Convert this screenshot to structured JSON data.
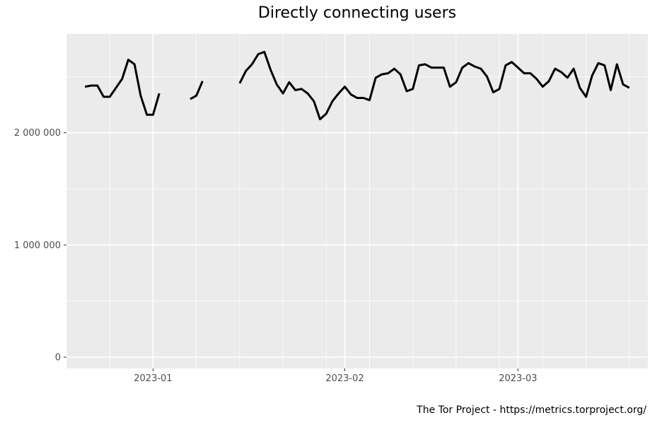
{
  "chart_data": {
    "type": "line",
    "title": "Directly connecting users",
    "xlabel": "",
    "ylabel": "",
    "caption": "The Tor Project - https://metrics.torproject.org/",
    "xlim": [
      "2022-12-18",
      "2023-03-22"
    ],
    "ylim": [
      -100000,
      2880000
    ],
    "x_ticks": [
      {
        "value": "2023-01-01",
        "label": "2023-01"
      },
      {
        "value": "2023-02-01",
        "label": "2023-02"
      },
      {
        "value": "2023-03-01",
        "label": "2023-03"
      }
    ],
    "y_ticks": [
      {
        "value": 0,
        "label": "0"
      },
      {
        "value": 1000000,
        "label": "1 000 000"
      },
      {
        "value": 2000000,
        "label": "2 000 000"
      }
    ],
    "grid": true,
    "legend": "none",
    "colors": {
      "line": "#000000",
      "panel": "#ebebeb",
      "grid": "#ffffff"
    },
    "series": [
      {
        "segments": [
          [
            [
              "2022-12-21",
              2410000
            ],
            [
              "2022-12-22",
              2420000
            ],
            [
              "2022-12-23",
              2420000
            ],
            [
              "2022-12-24",
              2320000
            ],
            [
              "2022-12-25",
              2320000
            ],
            [
              "2022-12-26",
              2400000
            ],
            [
              "2022-12-27",
              2480000
            ],
            [
              "2022-12-28",
              2650000
            ],
            [
              "2022-12-29",
              2610000
            ],
            [
              "2022-12-30",
              2330000
            ],
            [
              "2022-12-31",
              2160000
            ],
            [
              "2023-01-01",
              2160000
            ],
            [
              "2023-01-02",
              2350000
            ]
          ],
          [
            [
              "2023-01-07",
              2300000
            ],
            [
              "2023-01-08",
              2330000
            ],
            [
              "2023-01-09",
              2460000
            ]
          ],
          [
            [
              "2023-01-15",
              2440000
            ],
            [
              "2023-01-16",
              2550000
            ],
            [
              "2023-01-17",
              2610000
            ],
            [
              "2023-01-18",
              2700000
            ],
            [
              "2023-01-19",
              2720000
            ],
            [
              "2023-01-20",
              2560000
            ],
            [
              "2023-01-21",
              2430000
            ],
            [
              "2023-01-22",
              2350000
            ],
            [
              "2023-01-23",
              2450000
            ],
            [
              "2023-01-24",
              2380000
            ],
            [
              "2023-01-25",
              2390000
            ],
            [
              "2023-01-26",
              2350000
            ],
            [
              "2023-01-27",
              2280000
            ],
            [
              "2023-01-28",
              2120000
            ],
            [
              "2023-01-29",
              2170000
            ],
            [
              "2023-01-30",
              2280000
            ],
            [
              "2023-01-31",
              2350000
            ],
            [
              "2023-02-01",
              2410000
            ],
            [
              "2023-02-02",
              2340000
            ],
            [
              "2023-02-03",
              2310000
            ],
            [
              "2023-02-04",
              2310000
            ],
            [
              "2023-02-05",
              2290000
            ],
            [
              "2023-02-06",
              2490000
            ],
            [
              "2023-02-07",
              2520000
            ],
            [
              "2023-02-08",
              2530000
            ],
            [
              "2023-02-09",
              2570000
            ],
            [
              "2023-02-10",
              2520000
            ],
            [
              "2023-02-11",
              2370000
            ],
            [
              "2023-02-12",
              2390000
            ],
            [
              "2023-02-13",
              2600000
            ],
            [
              "2023-02-14",
              2610000
            ],
            [
              "2023-02-15",
              2580000
            ],
            [
              "2023-02-16",
              2580000
            ],
            [
              "2023-02-17",
              2580000
            ],
            [
              "2023-02-18",
              2410000
            ],
            [
              "2023-02-19",
              2450000
            ],
            [
              "2023-02-20",
              2580000
            ],
            [
              "2023-02-21",
              2620000
            ],
            [
              "2023-02-22",
              2590000
            ],
            [
              "2023-02-23",
              2570000
            ],
            [
              "2023-02-24",
              2500000
            ],
            [
              "2023-02-25",
              2360000
            ],
            [
              "2023-02-26",
              2390000
            ],
            [
              "2023-02-27",
              2600000
            ],
            [
              "2023-02-28",
              2630000
            ],
            [
              "2023-03-01",
              2580000
            ],
            [
              "2023-03-02",
              2530000
            ],
            [
              "2023-03-03",
              2530000
            ],
            [
              "2023-03-04",
              2480000
            ],
            [
              "2023-03-05",
              2410000
            ],
            [
              "2023-03-06",
              2460000
            ],
            [
              "2023-03-07",
              2570000
            ],
            [
              "2023-03-08",
              2540000
            ],
            [
              "2023-03-09",
              2490000
            ],
            [
              "2023-03-10",
              2570000
            ],
            [
              "2023-03-11",
              2400000
            ],
            [
              "2023-03-12",
              2320000
            ],
            [
              "2023-03-13",
              2510000
            ],
            [
              "2023-03-14",
              2620000
            ],
            [
              "2023-03-15",
              2600000
            ],
            [
              "2023-03-16",
              2380000
            ],
            [
              "2023-03-17",
              2610000
            ],
            [
              "2023-03-18",
              2430000
            ],
            [
              "2023-03-19",
              2400000
            ]
          ]
        ]
      }
    ]
  }
}
